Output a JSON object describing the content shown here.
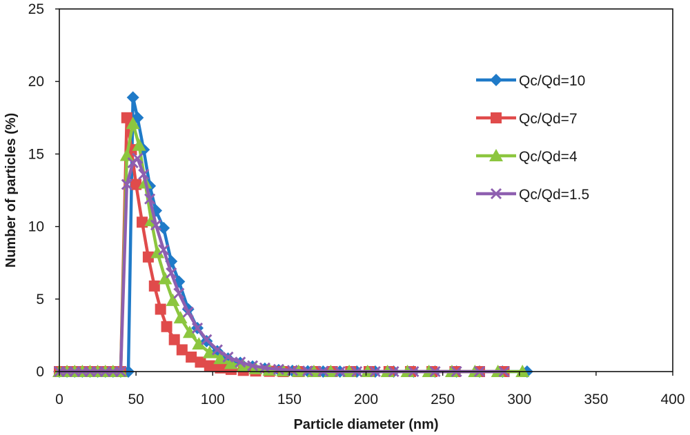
{
  "chart_data": {
    "type": "line",
    "title": "",
    "xlabel": "Particle diameter (nm)",
    "ylabel": "Number of particles (%)",
    "xlim": [
      0,
      400
    ],
    "ylim": [
      0,
      25
    ],
    "x_ticks": [
      "0",
      "50",
      "100",
      "150",
      "200",
      "250",
      "300",
      "350",
      "400"
    ],
    "y_ticks": [
      "0",
      "5",
      "10",
      "15",
      "20",
      "25"
    ],
    "grid": false,
    "legend_position": "top-right",
    "series": [
      {
        "name": "Qc/Qd=10",
        "color": "#1f7ac8",
        "marker": "diamond",
        "x": [
          0,
          5,
          10,
          15,
          20,
          25,
          30,
          35,
          40,
          45,
          48,
          51,
          55,
          59,
          63,
          68,
          73,
          78,
          84,
          90,
          96,
          103,
          110,
          118,
          126,
          134,
          143,
          152,
          162,
          172,
          183,
          194,
          206,
          218,
          231,
          245,
          259,
          274,
          289,
          305
        ],
        "y": [
          0,
          0,
          0,
          0,
          0,
          0,
          0,
          0,
          0,
          0,
          18.9,
          17.5,
          15.3,
          12.8,
          11.1,
          9.9,
          7.6,
          6.2,
          4.3,
          3.0,
          2.1,
          1.4,
          0.9,
          0.6,
          0.35,
          0.2,
          0.1,
          0.05,
          0.02,
          0,
          0,
          0,
          0,
          0,
          0,
          0,
          0,
          0,
          0,
          0
        ]
      },
      {
        "name": "Qc/Qd=7",
        "color": "#e04b4b",
        "marker": "square",
        "x": [
          0,
          5,
          10,
          15,
          20,
          25,
          30,
          35,
          40,
          44,
          47,
          50,
          54,
          58,
          62,
          66,
          70,
          75,
          80,
          86,
          92,
          98,
          105,
          112,
          120,
          128,
          137,
          146,
          156,
          167,
          178,
          190,
          202,
          215,
          229,
          243,
          258,
          274,
          290
        ],
        "y": [
          0,
          0,
          0,
          0,
          0,
          0,
          0,
          0,
          0,
          17.5,
          15.3,
          12.9,
          10.3,
          7.9,
          5.9,
          4.3,
          3.1,
          2.2,
          1.5,
          1.0,
          0.65,
          0.4,
          0.25,
          0.15,
          0.08,
          0.04,
          0.02,
          0,
          0,
          0,
          0,
          0,
          0,
          0,
          0,
          0,
          0,
          0,
          0
        ]
      },
      {
        "name": "Qc/Qd=4",
        "color": "#8cc63f",
        "marker": "triangle",
        "x": [
          0,
          5,
          10,
          15,
          20,
          25,
          30,
          35,
          40,
          44,
          48,
          52,
          56,
          60,
          64,
          69,
          74,
          79,
          85,
          91,
          98,
          105,
          112,
          120,
          128,
          137,
          146,
          156,
          166,
          177,
          189,
          201,
          214,
          227,
          241,
          256,
          271,
          286,
          302
        ],
        "y": [
          0,
          0,
          0,
          0,
          0,
          0,
          0,
          0,
          0,
          14.9,
          17.1,
          15.6,
          13.0,
          10.4,
          8.2,
          6.4,
          4.9,
          3.7,
          2.7,
          1.9,
          1.3,
          0.9,
          0.55,
          0.35,
          0.2,
          0.1,
          0.05,
          0.02,
          0,
          0,
          0,
          0,
          0,
          0,
          0,
          0,
          0,
          0,
          0
        ]
      },
      {
        "name": "Qc/Qd=1.5",
        "color": "#8e5fb0",
        "marker": "cross",
        "x": [
          0,
          5,
          10,
          15,
          20,
          25,
          30,
          35,
          40,
          44,
          48,
          51,
          55,
          59,
          63,
          68,
          73,
          78,
          84,
          90,
          96,
          103,
          110,
          118,
          126,
          134,
          143,
          152,
          162,
          172,
          183,
          194,
          206,
          218,
          231,
          245,
          259,
          274,
          290
        ],
        "y": [
          0,
          0,
          0,
          0,
          0,
          0,
          0,
          0,
          0,
          12.9,
          14.4,
          14.7,
          13.6,
          11.9,
          10.1,
          8.4,
          6.8,
          5.4,
          4.1,
          3.0,
          2.2,
          1.5,
          1.0,
          0.65,
          0.4,
          0.25,
          0.15,
          0.08,
          0.04,
          0.02,
          0,
          0,
          0,
          0,
          0,
          0,
          0,
          0,
          0
        ]
      }
    ]
  }
}
